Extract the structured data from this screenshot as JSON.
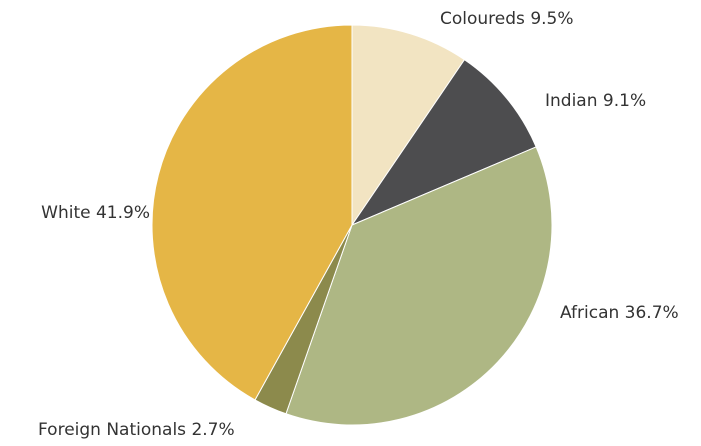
{
  "chart_data": {
    "type": "pie",
    "categories": [
      "Coloureds",
      "Indian",
      "African",
      "Foreign Nationals",
      "White"
    ],
    "values": [
      9.5,
      9.1,
      36.7,
      2.7,
      41.9
    ],
    "value_labels": [
      "9.5%",
      "9.1%",
      "36.7%",
      "2.7%",
      "41.9%"
    ],
    "colors": [
      "#f2e4c2",
      "#4d4d4f",
      "#aeb784",
      "#8c8a4c",
      "#e5b646"
    ]
  }
}
